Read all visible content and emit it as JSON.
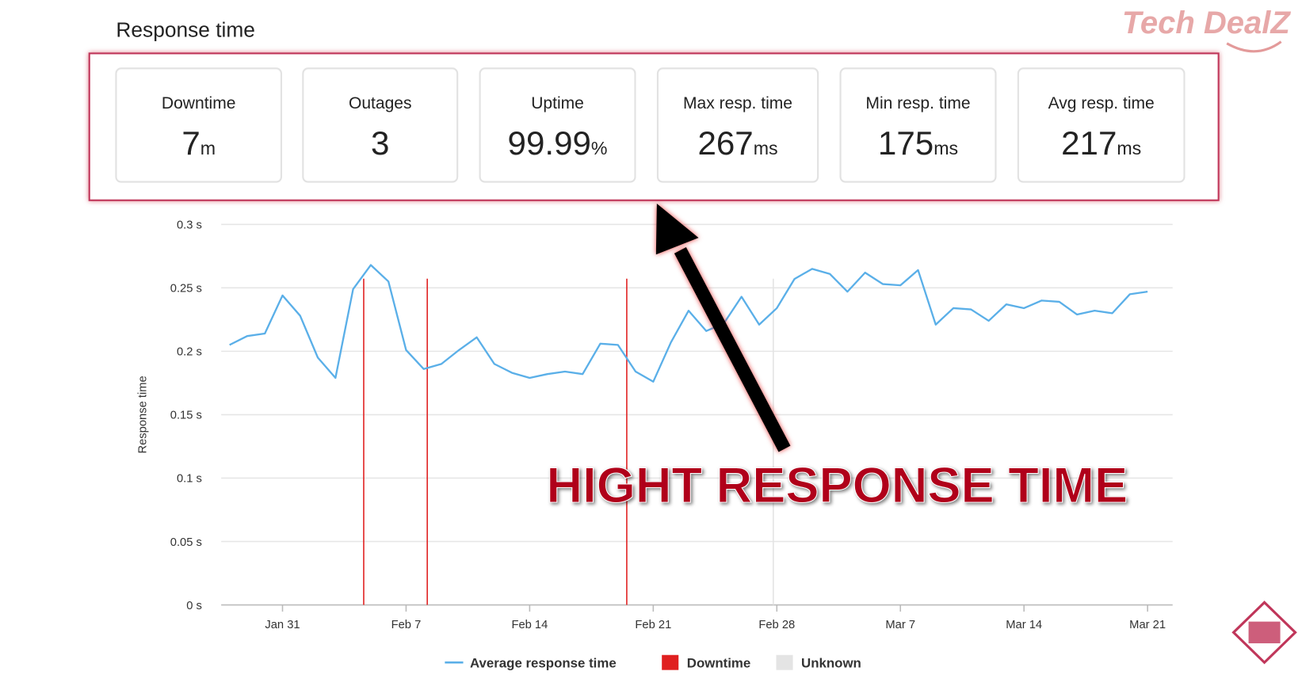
{
  "watermark": "Tech DealZ",
  "stats": [
    {
      "label": "Downtime",
      "value": 7,
      "unit": "m"
    },
    {
      "label": "Outages",
      "value": 3
    },
    {
      "label": "Uptime",
      "value": 99.99,
      "unit": "%"
    },
    {
      "label": "Max resp. time",
      "value": 267,
      "unit": "ms"
    },
    {
      "label": "Min resp. time",
      "value": 175,
      "unit": "ms"
    },
    {
      "label": "Avg resp. time",
      "value": 217,
      "unit": "ms"
    }
  ],
  "chart_data": {
    "type": "line",
    "title": "Response time",
    "y_label": "Response time",
    "annotation": "HIGHT RESPONSE TIME",
    "categories": [
      null,
      null,
      null,
      "Jan 31",
      null,
      null,
      null,
      null,
      null,
      null,
      "Feb 7",
      null,
      null,
      null,
      null,
      null,
      null,
      "Feb 14",
      null,
      null,
      null,
      null,
      null,
      null,
      "Feb 21",
      null,
      null,
      null,
      null,
      null,
      null,
      "Feb 28",
      null,
      null,
      null,
      null,
      null,
      null,
      "Mar 7",
      null,
      null,
      null,
      null,
      null,
      null,
      "Mar 14",
      null,
      null,
      null,
      null,
      null,
      null,
      "Mar 21"
    ],
    "series": [
      {
        "name": "Average response time",
        "color": "#5aafe8",
        "values": [
          0.205,
          0.212,
          0.214,
          0.244,
          0.228,
          0.195,
          0.179,
          0.249,
          0.268,
          0.255,
          0.201,
          0.186,
          0.19,
          0.201,
          0.211,
          0.19,
          0.183,
          0.179,
          0.182,
          0.184,
          0.182,
          0.206,
          0.205,
          0.184,
          0.176,
          0.207,
          0.232,
          0.216,
          0.222,
          0.243,
          0.221,
          0.234,
          0.257,
          0.265,
          0.261,
          0.247,
          0.262,
          0.253,
          0.252,
          0.264,
          0.221,
          0.234,
          0.233,
          0.224,
          0.237,
          0.234,
          0.24,
          0.239,
          0.229,
          0.232,
          0.23,
          0.245,
          0.247
        ]
      }
    ],
    "events": [
      {
        "name": "Downtime",
        "color": "#e02020",
        "at": [
          7.6,
          11.2,
          22.5
        ]
      },
      {
        "name": "Unknown",
        "color": "#e4e4e4",
        "at": [
          30.8
        ]
      }
    ],
    "ylim": [
      0,
      0.3
    ],
    "yticks": [
      {
        "value": 0,
        "label": "0 s"
      },
      {
        "value": 0.05,
        "label": "0.05 s"
      },
      {
        "value": 0.1,
        "label": "0.1 s"
      },
      {
        "value": 0.15,
        "label": "0.15 s"
      },
      {
        "value": 0.2,
        "label": "0.2 s"
      },
      {
        "value": 0.25,
        "label": "0.25 s"
      },
      {
        "value": 0.3,
        "label": "0.3 s"
      }
    ],
    "grid": true
  }
}
